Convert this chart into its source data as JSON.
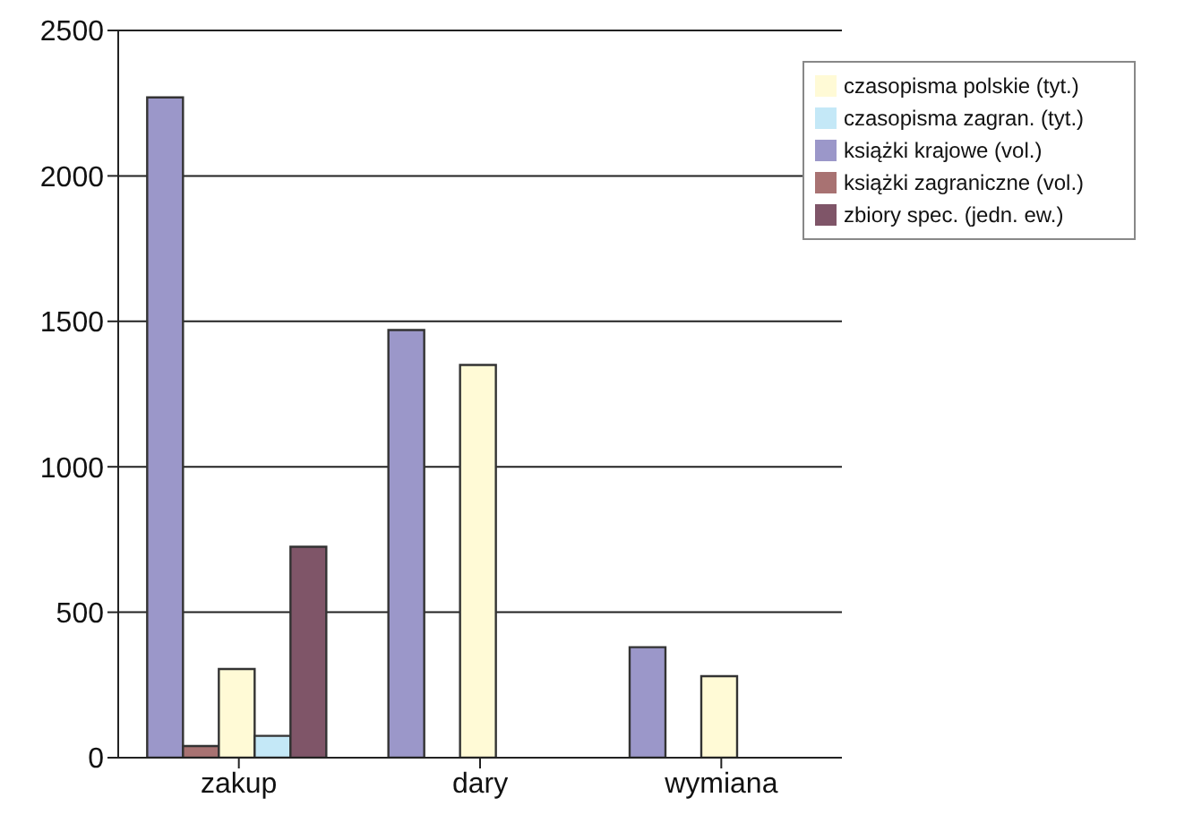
{
  "chart_data": {
    "type": "bar",
    "categories": [
      "zakup",
      "dary",
      "wymiana"
    ],
    "series": [
      {
        "name": "książki krajowe (vol.)",
        "color": "#9b97c9",
        "values": [
          2270,
          1470,
          380
        ]
      },
      {
        "name": "książki zagraniczne (vol.)",
        "color": "#a87272",
        "values": [
          40,
          null,
          null
        ]
      },
      {
        "name": "czasopisma polskie (tyt.)",
        "color": "#fffad6",
        "values": [
          305,
          1350,
          280
        ]
      },
      {
        "name": "czasopisma zagran. (tyt.)",
        "color": "#c4e8f7",
        "values": [
          75,
          null,
          null
        ]
      },
      {
        "name": "zbiory spec. (jedn. ew.)",
        "color": "#7f5568",
        "values": [
          725,
          null,
          null
        ]
      }
    ],
    "ylim": [
      0,
      2500
    ],
    "yticks": [
      0,
      500,
      1000,
      1500,
      2000,
      2500
    ],
    "grid": "y",
    "legend": "top right"
  }
}
